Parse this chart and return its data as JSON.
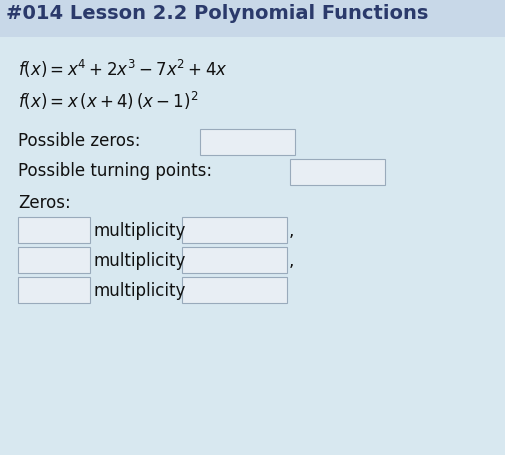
{
  "title": "#014 Lesson 2.2 Polynomial Functions",
  "title_fontsize": 14,
  "title_color": "#2b3a6b",
  "title_bg_color": "#c8d8e8",
  "bg_color": "#d8e8f0",
  "line1": "$f(x) = x^4 + 2x^3 - 7x^2 + 4x$",
  "line2": "$f(x) = x\\,(x + 4)\\,(x - 1)^2$",
  "math_fontsize": 12,
  "label_fontsize": 12,
  "box_facecolor": "#e8eef4",
  "box_edgecolor": "#99aabb",
  "text_color": "#111111",
  "possible_zeros_label": "Possible zeros:",
  "possible_tp_label": "Possible turning points:",
  "zeros_label": "Zeros:",
  "multiplicity_label": "multiplicity",
  "comma": ","
}
